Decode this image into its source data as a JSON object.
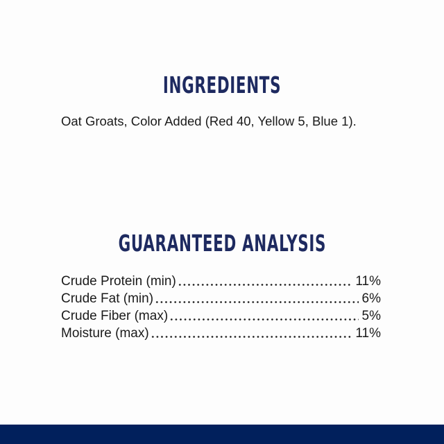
{
  "page": {
    "background_color": "#fdfdfd",
    "heading_color": "#1e2a60",
    "body_text_color": "#1a1a1a",
    "bottom_band_color": "#01205c"
  },
  "ingredients": {
    "heading": "INGREDIENTS",
    "text": "Oat Groats, Color Added (Red 40, Yellow 5, Blue 1)."
  },
  "guaranteed_analysis": {
    "heading": "GUARANTEED ANALYSIS",
    "rows": [
      {
        "label": "Crude Protein (min)",
        "value": "11%"
      },
      {
        "label": "Crude Fat (min)",
        "value": "6%"
      },
      {
        "label": "Crude Fiber (max)",
        "value": "5%"
      },
      {
        "label": "Moisture (max)",
        "value": "11%"
      }
    ]
  }
}
